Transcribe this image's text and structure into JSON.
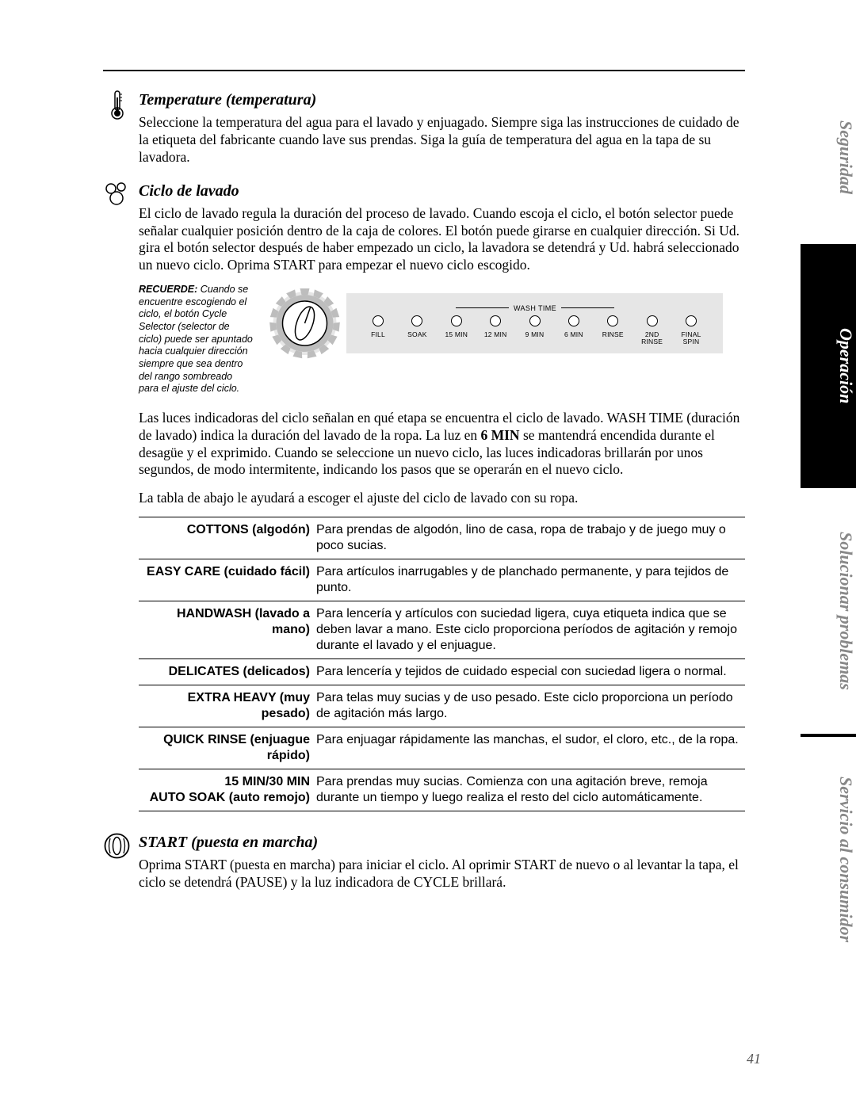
{
  "tabs": {
    "seguridad": "Seguridad",
    "operacion": "Operación",
    "solucionar": "Solucionar problemas",
    "servicio": "Servicio al consumidor"
  },
  "temperature": {
    "title": "Temperature (temperatura)",
    "text": "Seleccione la temperatura del agua para el lavado y enjuagado. Siempre siga las instrucciones de cuidado de la etiqueta del fabricante cuando lave sus prendas. Siga la guía de temperatura del agua en la tapa de su lavadora."
  },
  "ciclo": {
    "title": "Ciclo de lavado",
    "text": "El ciclo de lavado regula la duración del proceso de lavado. Cuando escoja el ciclo, el botón selector puede señalar cualquier posición dentro de la caja de colores. El botón puede girarse en cualquier dirección. Si Ud. gira el botón selector después de haber empezado un ciclo, la lavadora se detendrá y Ud. habrá seleccionado un nuevo ciclo. Oprima START para empezar el nuevo ciclo escogido.",
    "recuerde_bold": "RECUERDE:",
    "recuerde": " Cuando se encuentre escogiendo el ciclo, el botón Cycle Selector (selector de ciclo) puede ser apuntado hacia cualquier dirección siempre que sea dentro del rango sombreado para el ajuste del ciclo.",
    "wash_time_label": "WASH TIME",
    "leds": [
      "FILL",
      "SOAK",
      "15 MIN",
      "12 MIN",
      "9 MIN",
      "6 MIN",
      "RINSE",
      "2ND\nRINSE",
      "FINAL\nSPIN"
    ],
    "after1_a": "Las luces indicadoras del ciclo señalan en qué etapa se encuentra el ciclo de lavado. WASH TIME (duración de lavado) indica la duración del lavado de la ropa. La luz en ",
    "after1_bold": "6 MIN",
    "after1_b": " se mantendrá encendida durante el desagüe y el exprimido. Cuando se seleccione un nuevo ciclo, las luces indicadoras brillarán por unos segundos, de modo intermitente, indicando los pasos que se operarán en el nuevo ciclo.",
    "after2": "La tabla de abajo le ayudará a escoger el ajuste del ciclo de lavado con su ropa.",
    "table": [
      {
        "h": "COTTONS (algodón)",
        "d": "Para prendas de algodón, lino de casa, ropa de trabajo y de juego muy o poco sucias."
      },
      {
        "h": "EASY CARE (cuidado fácil)",
        "d": "Para artículos inarrugables y de planchado permanente, y para tejidos de punto."
      },
      {
        "h": "HANDWASH (lavado a mano)",
        "d": "Para lencería y artículos con suciedad ligera, cuya etiqueta indica que se deben lavar a mano. Este ciclo proporciona períodos de agitación y remojo durante el lavado y el enjuague."
      },
      {
        "h": "DELICATES (delicados)",
        "d": "Para lencería y tejidos de cuidado especial con suciedad ligera o normal."
      },
      {
        "h": "EXTRA HEAVY (muy pesado)",
        "d": "Para telas muy sucias y de uso pesado. Este ciclo proporciona un período de agitación más largo."
      },
      {
        "h": "QUICK RINSE (enjuague rápido)",
        "d": "Para enjuagar rápidamente las manchas, el sudor, el cloro, etc., de la ropa."
      },
      {
        "h": "15 MIN/30 MIN\nAUTO SOAK (auto remojo)",
        "d": "Para prendas muy sucias. Comienza con una agitación breve, remoja durante un tiempo y luego realiza el resto del ciclo automáticamente."
      }
    ]
  },
  "start": {
    "title": "START (puesta en marcha)",
    "text": "Oprima START (puesta en marcha) para iniciar el ciclo. Al oprimir START de nuevo o al levantar la tapa, el ciclo se detendrá (PAUSE) y la luz indicadora de CYCLE brillará."
  },
  "page": "41"
}
